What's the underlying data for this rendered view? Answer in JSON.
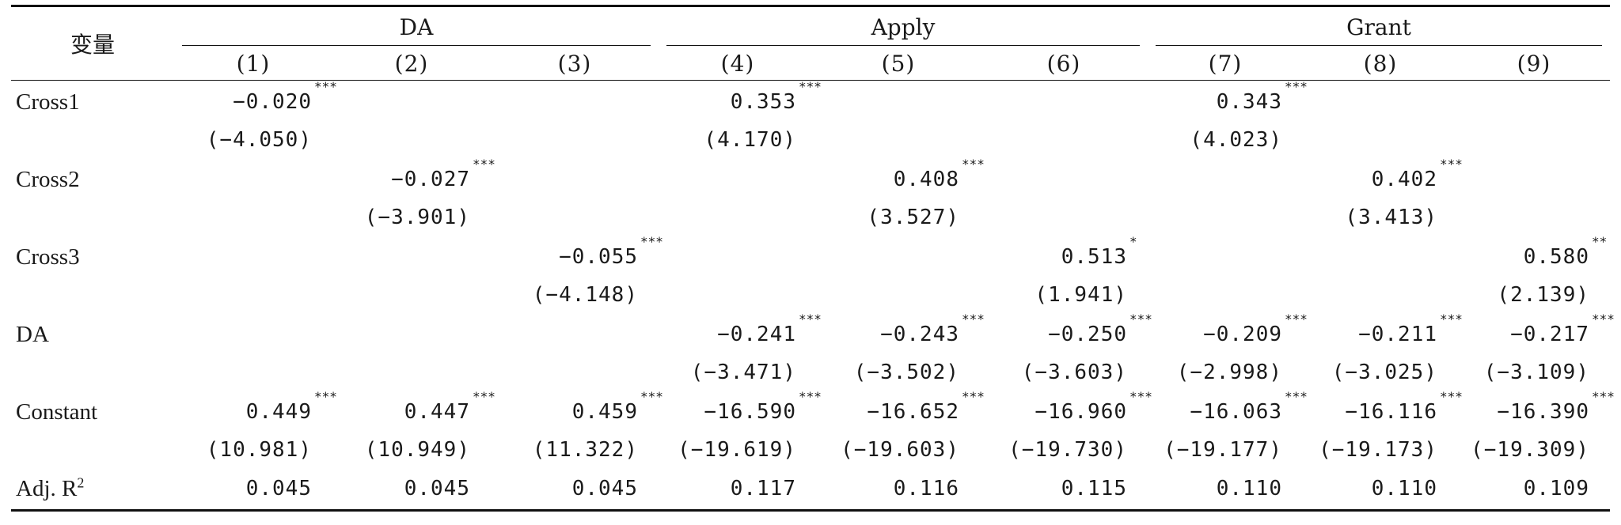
{
  "header": {
    "var_label": "变量",
    "groups": [
      "DA",
      "Apply",
      "Grant"
    ],
    "columns": [
      "(1)",
      "(2)",
      "(3)",
      "(4)",
      "(5)",
      "(6)",
      "(7)",
      "(8)",
      "(9)"
    ]
  },
  "rows": [
    {
      "label": "Cross1",
      "coef": [
        {
          "v": "−0.020",
          "s": "***"
        },
        {
          "v": "",
          "s": ""
        },
        {
          "v": "",
          "s": ""
        },
        {
          "v": "0.353",
          "s": "***"
        },
        {
          "v": "",
          "s": ""
        },
        {
          "v": "",
          "s": ""
        },
        {
          "v": "0.343",
          "s": "***"
        },
        {
          "v": "",
          "s": ""
        },
        {
          "v": "",
          "s": ""
        }
      ],
      "t": [
        "(−4.050)",
        "",
        "",
        "(4.170)",
        "",
        "",
        "(4.023)",
        "",
        ""
      ]
    },
    {
      "label": "Cross2",
      "coef": [
        {
          "v": "",
          "s": ""
        },
        {
          "v": "−0.027",
          "s": "***"
        },
        {
          "v": "",
          "s": ""
        },
        {
          "v": "",
          "s": ""
        },
        {
          "v": "0.408",
          "s": "***"
        },
        {
          "v": "",
          "s": ""
        },
        {
          "v": "",
          "s": ""
        },
        {
          "v": "0.402",
          "s": "***"
        },
        {
          "v": "",
          "s": ""
        }
      ],
      "t": [
        "",
        "(−3.901)",
        "",
        "",
        "(3.527)",
        "",
        "",
        "(3.413)",
        ""
      ]
    },
    {
      "label": "Cross3",
      "coef": [
        {
          "v": "",
          "s": ""
        },
        {
          "v": "",
          "s": ""
        },
        {
          "v": "−0.055",
          "s": "***"
        },
        {
          "v": "",
          "s": ""
        },
        {
          "v": "",
          "s": ""
        },
        {
          "v": "0.513",
          "s": "*"
        },
        {
          "v": "",
          "s": ""
        },
        {
          "v": "",
          "s": ""
        },
        {
          "v": "0.580",
          "s": "**"
        }
      ],
      "t": [
        "",
        "",
        "(−4.148)",
        "",
        "",
        "(1.941)",
        "",
        "",
        "(2.139)"
      ]
    },
    {
      "label": "DA",
      "coef": [
        {
          "v": "",
          "s": ""
        },
        {
          "v": "",
          "s": ""
        },
        {
          "v": "",
          "s": ""
        },
        {
          "v": "−0.241",
          "s": "***"
        },
        {
          "v": "−0.243",
          "s": "***"
        },
        {
          "v": "−0.250",
          "s": "***"
        },
        {
          "v": "−0.209",
          "s": "***"
        },
        {
          "v": "−0.211",
          "s": "***"
        },
        {
          "v": "−0.217",
          "s": "***"
        }
      ],
      "t": [
        "",
        "",
        "",
        "(−3.471)",
        "(−3.502)",
        "(−3.603)",
        "(−2.998)",
        "(−3.025)",
        "(−3.109)"
      ]
    },
    {
      "label": "Constant",
      "coef": [
        {
          "v": "0.449",
          "s": "***"
        },
        {
          "v": "0.447",
          "s": "***"
        },
        {
          "v": "0.459",
          "s": "***"
        },
        {
          "v": "−16.590",
          "s": "***"
        },
        {
          "v": "−16.652",
          "s": "***"
        },
        {
          "v": "−16.960",
          "s": "***"
        },
        {
          "v": "−16.063",
          "s": "***"
        },
        {
          "v": "−16.116",
          "s": "***"
        },
        {
          "v": "−16.390",
          "s": "***"
        }
      ],
      "t": [
        "(10.981)",
        "(10.949)",
        "(11.322)",
        "(−19.619)",
        "(−19.603)",
        "(−19.730)",
        "(−19.177)",
        "(−19.173)",
        "(−19.309)"
      ]
    }
  ],
  "adj_r2": {
    "label": "Adj. R",
    "label_sup": "2",
    "values": [
      "0.045",
      "0.045",
      "0.045",
      "0.117",
      "0.116",
      "0.115",
      "0.110",
      "0.110",
      "0.109"
    ]
  }
}
